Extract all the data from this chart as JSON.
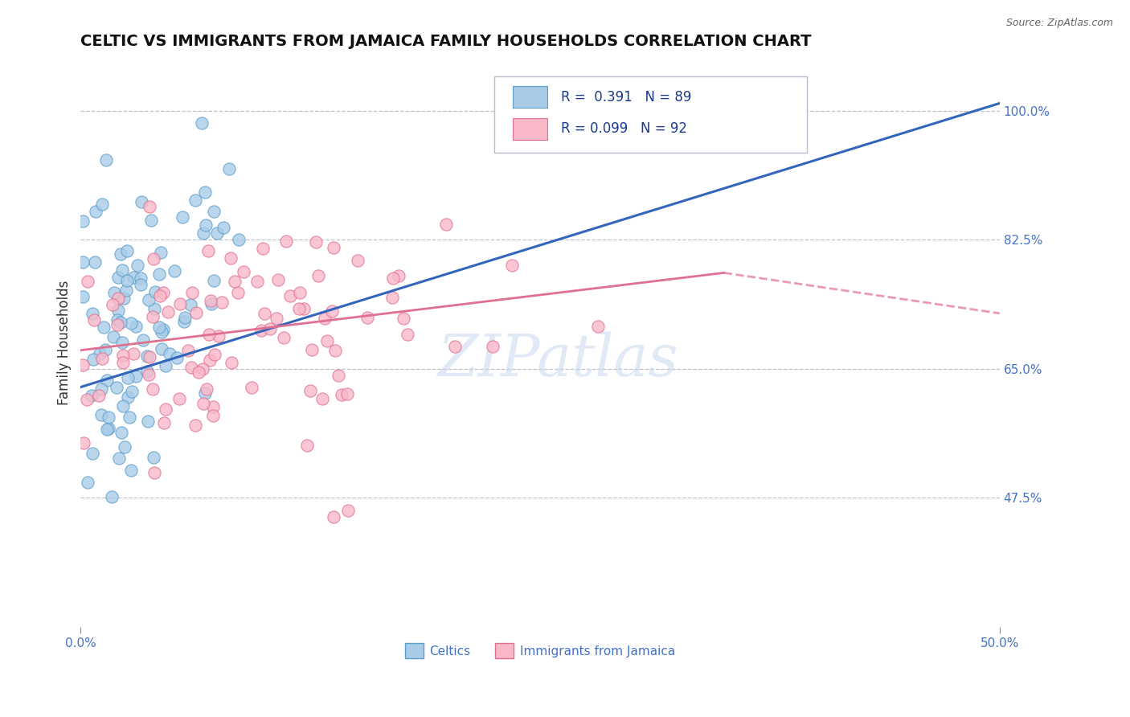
{
  "title": "CELTIC VS IMMIGRANTS FROM JAMAICA FAMILY HOUSEHOLDS CORRELATION CHART",
  "source": "Source: ZipAtlas.com",
  "ylabel": "Family Households",
  "xlim": [
    0.0,
    0.5
  ],
  "ylim": [
    0.3,
    1.07
  ],
  "xtick_labels": [
    "0.0%",
    "50.0%"
  ],
  "xtick_positions": [
    0.0,
    0.5
  ],
  "ytick_labels": [
    "47.5%",
    "65.0%",
    "82.5%",
    "100.0%"
  ],
  "ytick_positions": [
    0.475,
    0.65,
    0.825,
    1.0
  ],
  "celtics_color": "#a8cce8",
  "celtics_edge_color": "#5b9ec9",
  "jamaica_color": "#f9b8c8",
  "jamaica_edge_color": "#e07090",
  "celtics_trend_color": "#3366bb",
  "jamaica_trend_color": "#e07090",
  "r_celtics": 0.391,
  "n_celtics": 89,
  "r_jamaica": 0.099,
  "n_jamaica": 92,
  "axis_color": "#4472c4",
  "watermark_text": "ZIPatlas",
  "background_color": "#ffffff",
  "grid_color": "#bbbbcc",
  "title_color": "#111111",
  "title_fontsize": 14,
  "tick_fontsize": 11,
  "celtics_seed": 7,
  "jamaica_seed": 99,
  "trend_blue_x0": 0.0,
  "trend_blue_y0": 0.625,
  "trend_blue_x1": 0.5,
  "trend_blue_y1": 1.01,
  "trend_pink_x0": 0.0,
  "trend_pink_y0": 0.675,
  "trend_pink_x1": 0.5,
  "trend_pink_y1": 0.725
}
